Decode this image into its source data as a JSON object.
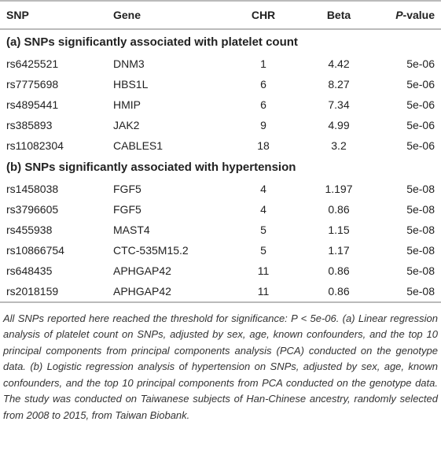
{
  "table": {
    "header": [
      "SNP",
      "Gene",
      "CHR",
      "Beta",
      "P-value"
    ],
    "sections": [
      {
        "title": "(a) SNPs significantly associated with platelet count",
        "rows": [
          [
            "rs6425521",
            "DNM3",
            "1",
            "4.42",
            "5e-06"
          ],
          [
            "rs7775698",
            "HBS1L",
            "6",
            "8.27",
            "5e-06"
          ],
          [
            "rs4895441",
            "HMIP",
            "6",
            "7.34",
            "5e-06"
          ],
          [
            "rs385893",
            "JAK2",
            "9",
            "4.99",
            "5e-06"
          ],
          [
            "rs11082304",
            "CABLES1",
            "18",
            "3.2",
            "5e-06"
          ]
        ]
      },
      {
        "title": "(b) SNPs significantly associated with hypertension",
        "rows": [
          [
            "rs1458038",
            "FGF5",
            "4",
            "1.197",
            "5e-08"
          ],
          [
            "rs3796605",
            "FGF5",
            "4",
            "0.86",
            "5e-08"
          ],
          [
            "rs455938",
            "MAST4",
            "5",
            "1.15",
            "5e-08"
          ],
          [
            "rs10866754",
            "CTC-535M15.2",
            "5",
            "1.17",
            "5e-08"
          ],
          [
            "rs648435",
            "APHGAP42",
            "11",
            "0.86",
            "5e-08"
          ],
          [
            "rs2018159",
            "APHGAP42",
            "11",
            "0.86",
            "5e-08"
          ]
        ]
      }
    ],
    "footnote": "All SNPs reported here reached the threshold for significance: P < 5e-06. (a) Linear regression analysis of platelet count on SNPs, adjusted by sex, age, known confounders, and the top 10 principal components from principal components analysis (PCA) conducted on the genotype data. (b) Logistic regression analysis of hypertension on SNPs, adjusted by sex, age, known confounders, and the top 10 principal components from PCA conducted on the genotype data. The study was conducted on Taiwanese subjects of Han-Chinese ancestry, randomly selected from 2008 to 2015, from Taiwan Biobank."
  }
}
